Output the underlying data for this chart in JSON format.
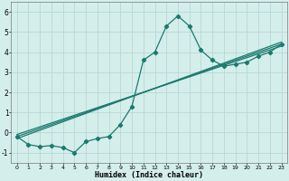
{
  "xlabel": "Humidex (Indice chaleur)",
  "background_color": "#d4eeec",
  "grid_color": "#b8d8d5",
  "line_color": "#1a7a6e",
  "xlim": [
    -0.5,
    23.5
  ],
  "ylim": [
    -1.5,
    6.5
  ],
  "yticks": [
    -1,
    0,
    1,
    2,
    3,
    4,
    5,
    6
  ],
  "xticks": [
    0,
    1,
    2,
    3,
    4,
    5,
    6,
    7,
    8,
    9,
    10,
    11,
    12,
    13,
    14,
    15,
    16,
    17,
    18,
    19,
    20,
    21,
    22,
    23
  ],
  "series1_x": [
    0,
    1,
    2,
    3,
    4,
    5,
    6,
    7,
    8,
    9,
    10,
    11,
    12,
    13,
    14,
    15,
    16,
    17,
    18,
    19,
    20,
    21,
    22,
    23
  ],
  "series1_y": [
    -0.2,
    -0.6,
    -0.7,
    -0.65,
    -0.75,
    -1.0,
    -0.45,
    -0.3,
    -0.2,
    0.4,
    1.3,
    3.6,
    4.0,
    5.3,
    5.8,
    5.3,
    4.1,
    3.6,
    3.3,
    3.4,
    3.5,
    3.8,
    4.0,
    4.4
  ],
  "ref_line1_x": [
    0,
    23
  ],
  "ref_line1_y": [
    -0.2,
    4.4
  ],
  "ref_line2_x": [
    0,
    23
  ],
  "ref_line2_y": [
    -0.3,
    4.5
  ],
  "ref_line3_x": [
    0,
    23
  ],
  "ref_line3_y": [
    -0.1,
    4.3
  ],
  "marker_style": "D",
  "marker_size": 2.2,
  "line_width": 0.9
}
